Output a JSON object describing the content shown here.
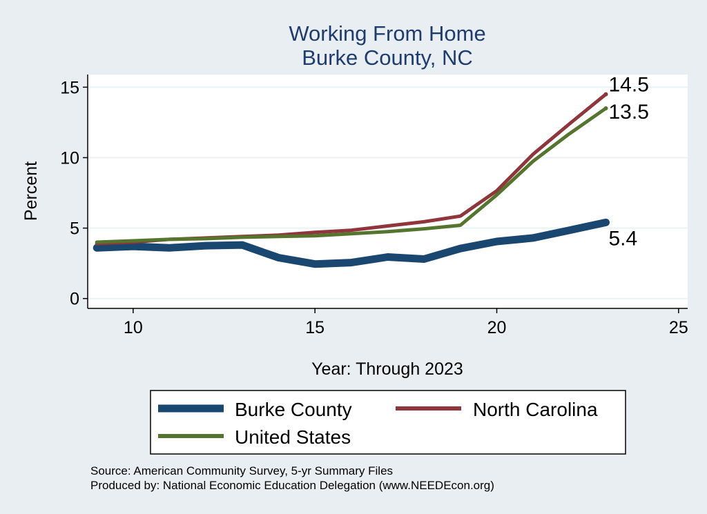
{
  "chart_data": {
    "type": "line",
    "title": [
      "Working From Home",
      "Burke County, NC"
    ],
    "xlabel": "Year: Through 2023",
    "ylabel": "Percent",
    "xlim": [
      8.75,
      25.25
    ],
    "ylim": [
      -0.7,
      15.9
    ],
    "xticks": [
      10,
      15,
      20,
      25
    ],
    "yticks": [
      0,
      5,
      10,
      15
    ],
    "grid": true,
    "x": [
      9,
      10,
      11,
      12,
      13,
      14,
      15,
      16,
      17,
      18,
      19,
      20,
      21,
      22,
      23
    ],
    "series": [
      {
        "name": "Burke County",
        "color": "#1a476f",
        "values": [
          3.6,
          3.7,
          3.6,
          3.75,
          3.8,
          2.9,
          2.45,
          2.55,
          2.95,
          2.8,
          3.55,
          4.05,
          4.3,
          4.85,
          5.4
        ],
        "end_label": "5.4"
      },
      {
        "name": "North Carolina",
        "color": "#90353b",
        "values": [
          3.9,
          4.0,
          4.2,
          4.3,
          4.4,
          4.5,
          4.7,
          4.85,
          5.15,
          5.45,
          5.85,
          7.65,
          10.25,
          12.4,
          14.5
        ],
        "end_label": "14.5"
      },
      {
        "name": "United States",
        "color": "#55752f",
        "values": [
          4.0,
          4.1,
          4.2,
          4.25,
          4.35,
          4.4,
          4.45,
          4.6,
          4.75,
          4.95,
          5.2,
          7.35,
          9.75,
          11.7,
          13.5
        ],
        "end_label": "13.5"
      }
    ],
    "legend_position": "bottom"
  },
  "footer": {
    "source": "Source: American Community Survey, 5-yr Summary Files",
    "produced_by": "Produced by: National Economic Education Delegation (www.NEEDEcon.org)"
  }
}
